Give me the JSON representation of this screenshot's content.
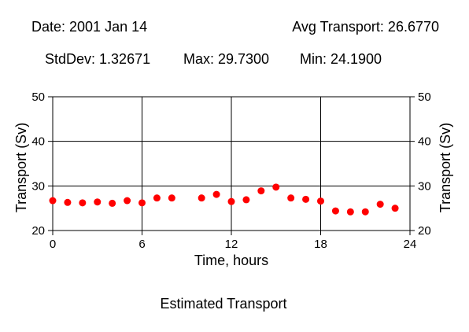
{
  "header": {
    "date": "Date: 2001 Jan 14",
    "avg": "Avg Transport: 26.6770",
    "stddev": "StdDev: 1.32671",
    "max": "Max: 29.7300",
    "min": "Min: 24.1900"
  },
  "chart_data": {
    "type": "scatter",
    "title": "Estimated Transport",
    "xlabel": "Time, hours",
    "ylabel": "Transport (Sv)",
    "xlim": [
      0,
      24
    ],
    "ylim": [
      20,
      50
    ],
    "xticks": [
      0,
      6,
      12,
      18,
      24
    ],
    "yticks": [
      20,
      30,
      40,
      50
    ],
    "grid": true,
    "marker_color": "#ff0000",
    "series": [
      {
        "x": [
          0,
          1,
          2,
          3,
          4,
          5,
          6,
          7,
          8,
          10,
          11,
          12,
          13,
          14,
          15,
          16,
          17,
          18,
          19,
          20,
          21,
          22,
          23
        ],
        "y": [
          26.7,
          26.3,
          26.2,
          26.4,
          26.1,
          26.7,
          26.2,
          27.3,
          27.3,
          27.3,
          28.1,
          26.5,
          26.9,
          28.9,
          29.73,
          27.3,
          27.0,
          26.6,
          24.4,
          24.19,
          24.2,
          25.9,
          25.0
        ]
      }
    ]
  }
}
